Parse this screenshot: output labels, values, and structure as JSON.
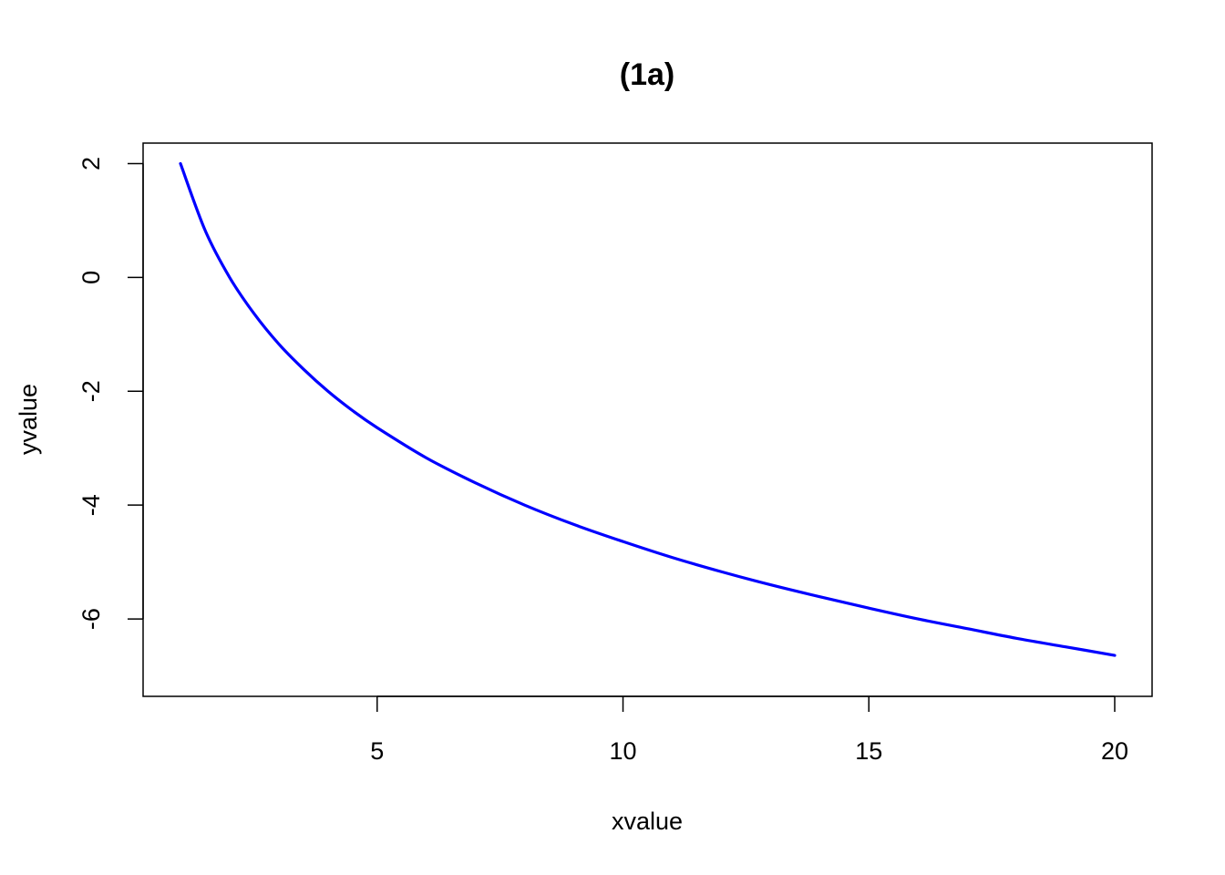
{
  "chart_data": {
    "type": "line",
    "title": "(1a)",
    "xlabel": "xvalue",
    "ylabel": "yvalue",
    "xlim": [
      0.24,
      20.76
    ],
    "ylim": [
      -7.36,
      2.36
    ],
    "x_ticks": [
      5,
      10,
      15,
      20
    ],
    "y_ticks": [
      2,
      0,
      -2,
      -4,
      -6
    ],
    "grid": false,
    "series": [
      {
        "color": "#0000ff",
        "x": [
          1,
          1.5,
          2,
          2.5,
          3,
          3.5,
          4,
          4.5,
          5,
          6,
          7,
          8,
          9,
          10,
          11,
          12,
          13,
          14,
          15,
          16,
          17,
          18,
          19,
          20
        ],
        "values": [
          2.0,
          0.83,
          0.0,
          -0.64,
          -1.17,
          -1.61,
          -2.0,
          -2.34,
          -2.64,
          -3.17,
          -3.61,
          -4.0,
          -4.34,
          -4.64,
          -4.92,
          -5.17,
          -5.4,
          -5.61,
          -5.81,
          -6.0,
          -6.17,
          -6.34,
          -6.49,
          -6.64
        ]
      }
    ]
  }
}
